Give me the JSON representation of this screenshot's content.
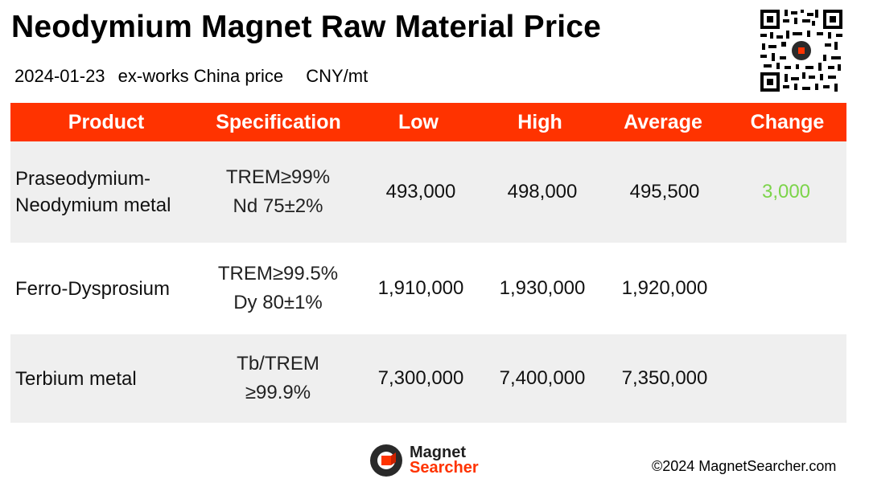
{
  "header": {
    "title": "Neodymium Magnet Raw Material Price",
    "date": "2024-01-23",
    "basis": "ex-works China price",
    "unit": "CNY/mt"
  },
  "table": {
    "columns": [
      "Product",
      "Specification",
      "Low",
      "High",
      "Average",
      "Change"
    ],
    "rows": [
      {
        "product_line1": "Praseodymium-",
        "product_line2": "Neodymium metal",
        "spec_line1": "TREM≥99%",
        "spec_line2": "Nd 75±2%",
        "low": "493,000",
        "high": "498,000",
        "average": "495,500",
        "change": "3,000"
      },
      {
        "product_line1": "Ferro-Dysprosium",
        "product_line2": "",
        "spec_line1": "TREM≥99.5%",
        "spec_line2": "Dy 80±1%",
        "low": "1,910,000",
        "high": "1,930,000",
        "average": "1,920,000",
        "change": ""
      },
      {
        "product_line1": "Terbium metal",
        "product_line2": "",
        "spec_line1": "Tb/TREM",
        "spec_line2": "≥99.9%",
        "low": "7,300,000",
        "high": "7,400,000",
        "average": "7,350,000",
        "change": ""
      }
    ]
  },
  "footer": {
    "logo_line1": "Magnet",
    "logo_line2": "Searcher",
    "copyright": "©2024 MagnetSearcher.com"
  },
  "colors": {
    "header_bar": "#ff3300",
    "row_shade": "#efefef",
    "change_up": "#7cd44a"
  },
  "icons": {
    "qr": "qr-code-icon",
    "logo": "magnet-searcher-logo-icon"
  }
}
